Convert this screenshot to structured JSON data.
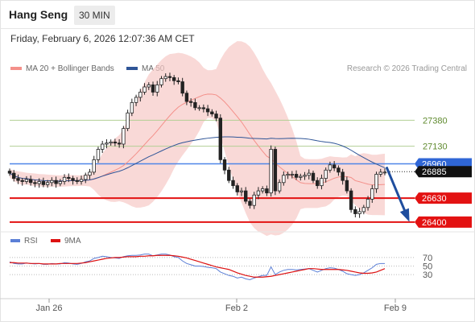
{
  "header": {
    "symbol": "Hang Seng",
    "interval": "30 MIN",
    "datetime": "Friday, February 6, 2026 12:07:36 AM CET"
  },
  "legend": {
    "ma20": {
      "label": "MA 20 + Bollinger Bands",
      "color": "#f4908a"
    },
    "ma50": {
      "label": "MA 50",
      "color": "#2f5597"
    },
    "copyright": "Research © 2026 Trading Central"
  },
  "rsi_legend": {
    "rsi": {
      "label": "RSI",
      "color": "#5b7fd6"
    },
    "ma9": {
      "label": "9MA",
      "color": "#dd1111"
    }
  },
  "chart_data": {
    "type": "candlestick",
    "price_range": [
      26330,
      27700
    ],
    "x_ticks": [
      "Jan 26",
      "Feb 2",
      "Feb 9"
    ],
    "levels": [
      {
        "value": 27380,
        "label": "27380",
        "style": "resistance-light"
      },
      {
        "value": 27130,
        "label": "27130",
        "style": "resistance-light"
      },
      {
        "value": 26960,
        "label": "26960",
        "style": "pivot"
      },
      {
        "value": 26885,
        "label": "26885",
        "style": "last-price"
      },
      {
        "value": 26630,
        "label": "26630",
        "style": "support"
      },
      {
        "value": 26400,
        "label": "26400",
        "style": "support"
      }
    ],
    "closes": [
      26870,
      26820,
      26800,
      26790,
      26810,
      26780,
      26770,
      26790,
      26760,
      26780,
      26800,
      26770,
      26790,
      26830,
      26820,
      26800,
      26790,
      26810,
      26850,
      26880,
      27000,
      27100,
      27150,
      27160,
      27170,
      27160,
      27150,
      27300,
      27450,
      27550,
      27600,
      27650,
      27700,
      27720,
      27650,
      27720,
      27780,
      27800,
      27790,
      27760,
      27750,
      27640,
      27560,
      27550,
      27500,
      27500,
      27490,
      27460,
      27440,
      27400,
      27000,
      26900,
      26800,
      26750,
      26690,
      26700,
      26600,
      26560,
      26660,
      26700,
      26720,
      26680,
      27100,
      26700,
      26780,
      26850,
      26860,
      26860,
      26830,
      26840,
      26850,
      26870,
      26800,
      26750,
      26820,
      26900,
      26950,
      26920,
      26880,
      26800,
      26700,
      26520,
      26480,
      26500,
      26540,
      26620,
      26720,
      26860,
      26880,
      26880
    ],
    "rsi": {
      "range": [
        0,
        100
      ],
      "levels": [
        "70",
        "50",
        "30"
      ],
      "values": [
        60,
        56,
        55,
        55,
        57,
        56,
        55,
        56,
        54,
        54,
        56,
        55,
        55,
        58,
        57,
        55,
        54,
        56,
        60,
        62,
        68,
        70,
        73,
        72,
        70,
        69,
        68,
        72,
        74,
        75,
        75,
        76,
        78,
        78,
        74,
        76,
        78,
        78,
        76,
        72,
        70,
        62,
        56,
        53,
        50,
        50,
        49,
        47,
        46,
        44,
        36,
        32,
        28,
        26,
        22,
        24,
        20,
        18,
        22,
        25,
        28,
        28,
        48,
        30,
        36,
        40,
        42,
        42,
        41,
        42,
        43,
        44,
        40,
        36,
        40,
        44,
        46,
        45,
        42,
        38,
        32,
        30,
        28,
        30,
        34,
        40,
        46,
        54,
        56,
        56
      ],
      "ma9": [
        58,
        58,
        57,
        57,
        57,
        56,
        56,
        56,
        55,
        55,
        55,
        55,
        56,
        56,
        56,
        56,
        56,
        57,
        58,
        60,
        62,
        64,
        66,
        68,
        69,
        70,
        70,
        71,
        72,
        72,
        72,
        73,
        73,
        74,
        74,
        75,
        75,
        75,
        75,
        74,
        73,
        71,
        69,
        66,
        63,
        60,
        57,
        54,
        51,
        48,
        46,
        44,
        42,
        38,
        34,
        31,
        28,
        26,
        24,
        24,
        24,
        25,
        26,
        28,
        30,
        32,
        34,
        36,
        38,
        40,
        42,
        44,
        44,
        43,
        42,
        42,
        42,
        42,
        42,
        41,
        40,
        38,
        36,
        34,
        33,
        33,
        34,
        36,
        40,
        44
      ]
    }
  }
}
